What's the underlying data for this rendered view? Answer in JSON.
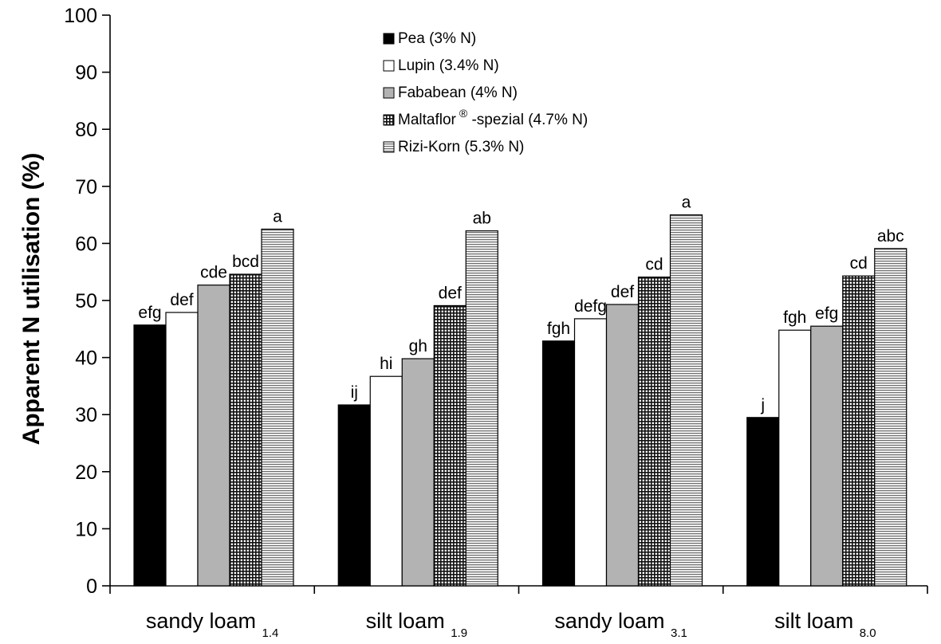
{
  "chart_data": {
    "type": "bar",
    "ylabel": "Apparent  N utilisation (%)",
    "ylim": [
      0,
      100
    ],
    "yticks": [
      0,
      10,
      20,
      30,
      40,
      50,
      60,
      70,
      80,
      90,
      100
    ],
    "grid": false,
    "legend_position": "top-center",
    "categories": [
      {
        "main": "sandy loam",
        "sub": "1.4"
      },
      {
        "main": "silt loam",
        "sub": "1.9"
      },
      {
        "main": "sandy loam",
        "sub": "3.1"
      },
      {
        "main": "silt loam",
        "sub": "8.0"
      }
    ],
    "series": [
      {
        "name": "Pea (3% N)",
        "legend_main": "Pea (3% N)",
        "color": "#000000",
        "pattern": "solid-black",
        "values": [
          45.7,
          31.7,
          42.9,
          29.5
        ],
        "labels": [
          "efg",
          "ij",
          "fgh",
          "j"
        ]
      },
      {
        "name": "Lupin (3.4% N)",
        "legend_main": "Lupin (3.4% N)",
        "color": "#ffffff",
        "pattern": "solid-white",
        "values": [
          47.9,
          36.7,
          46.8,
          44.8
        ],
        "labels": [
          "def",
          "hi",
          "defg",
          "fgh"
        ]
      },
      {
        "name": "Fababean (4% N)",
        "legend_main": "Fababean (4% N)",
        "color": "#b3b3b3",
        "pattern": "solid-grey",
        "values": [
          52.7,
          39.8,
          49.3,
          45.5
        ],
        "labels": [
          "cde",
          "gh",
          "def",
          "efg"
        ]
      },
      {
        "name": "Maltaflor ® -spezial (4.7% N)",
        "legend_main": "Maltaflor",
        "legend_sup": "®",
        "legend_rest": " -spezial (4.7% N)",
        "color": "#666666",
        "pattern": "crosshatch",
        "values": [
          54.6,
          49.1,
          54.1,
          54.3
        ],
        "labels": [
          "bcd",
          "def",
          "cd",
          "cd"
        ]
      },
      {
        "name": "Rizi-Korn (5.3% N)",
        "legend_main": "Rizi-Korn (5.3% N)",
        "color": "#999999",
        "pattern": "horizontal-lines",
        "values": [
          62.5,
          62.2,
          65.0,
          59.1
        ],
        "labels": [
          "a",
          "ab",
          "a",
          "abc"
        ]
      }
    ]
  }
}
